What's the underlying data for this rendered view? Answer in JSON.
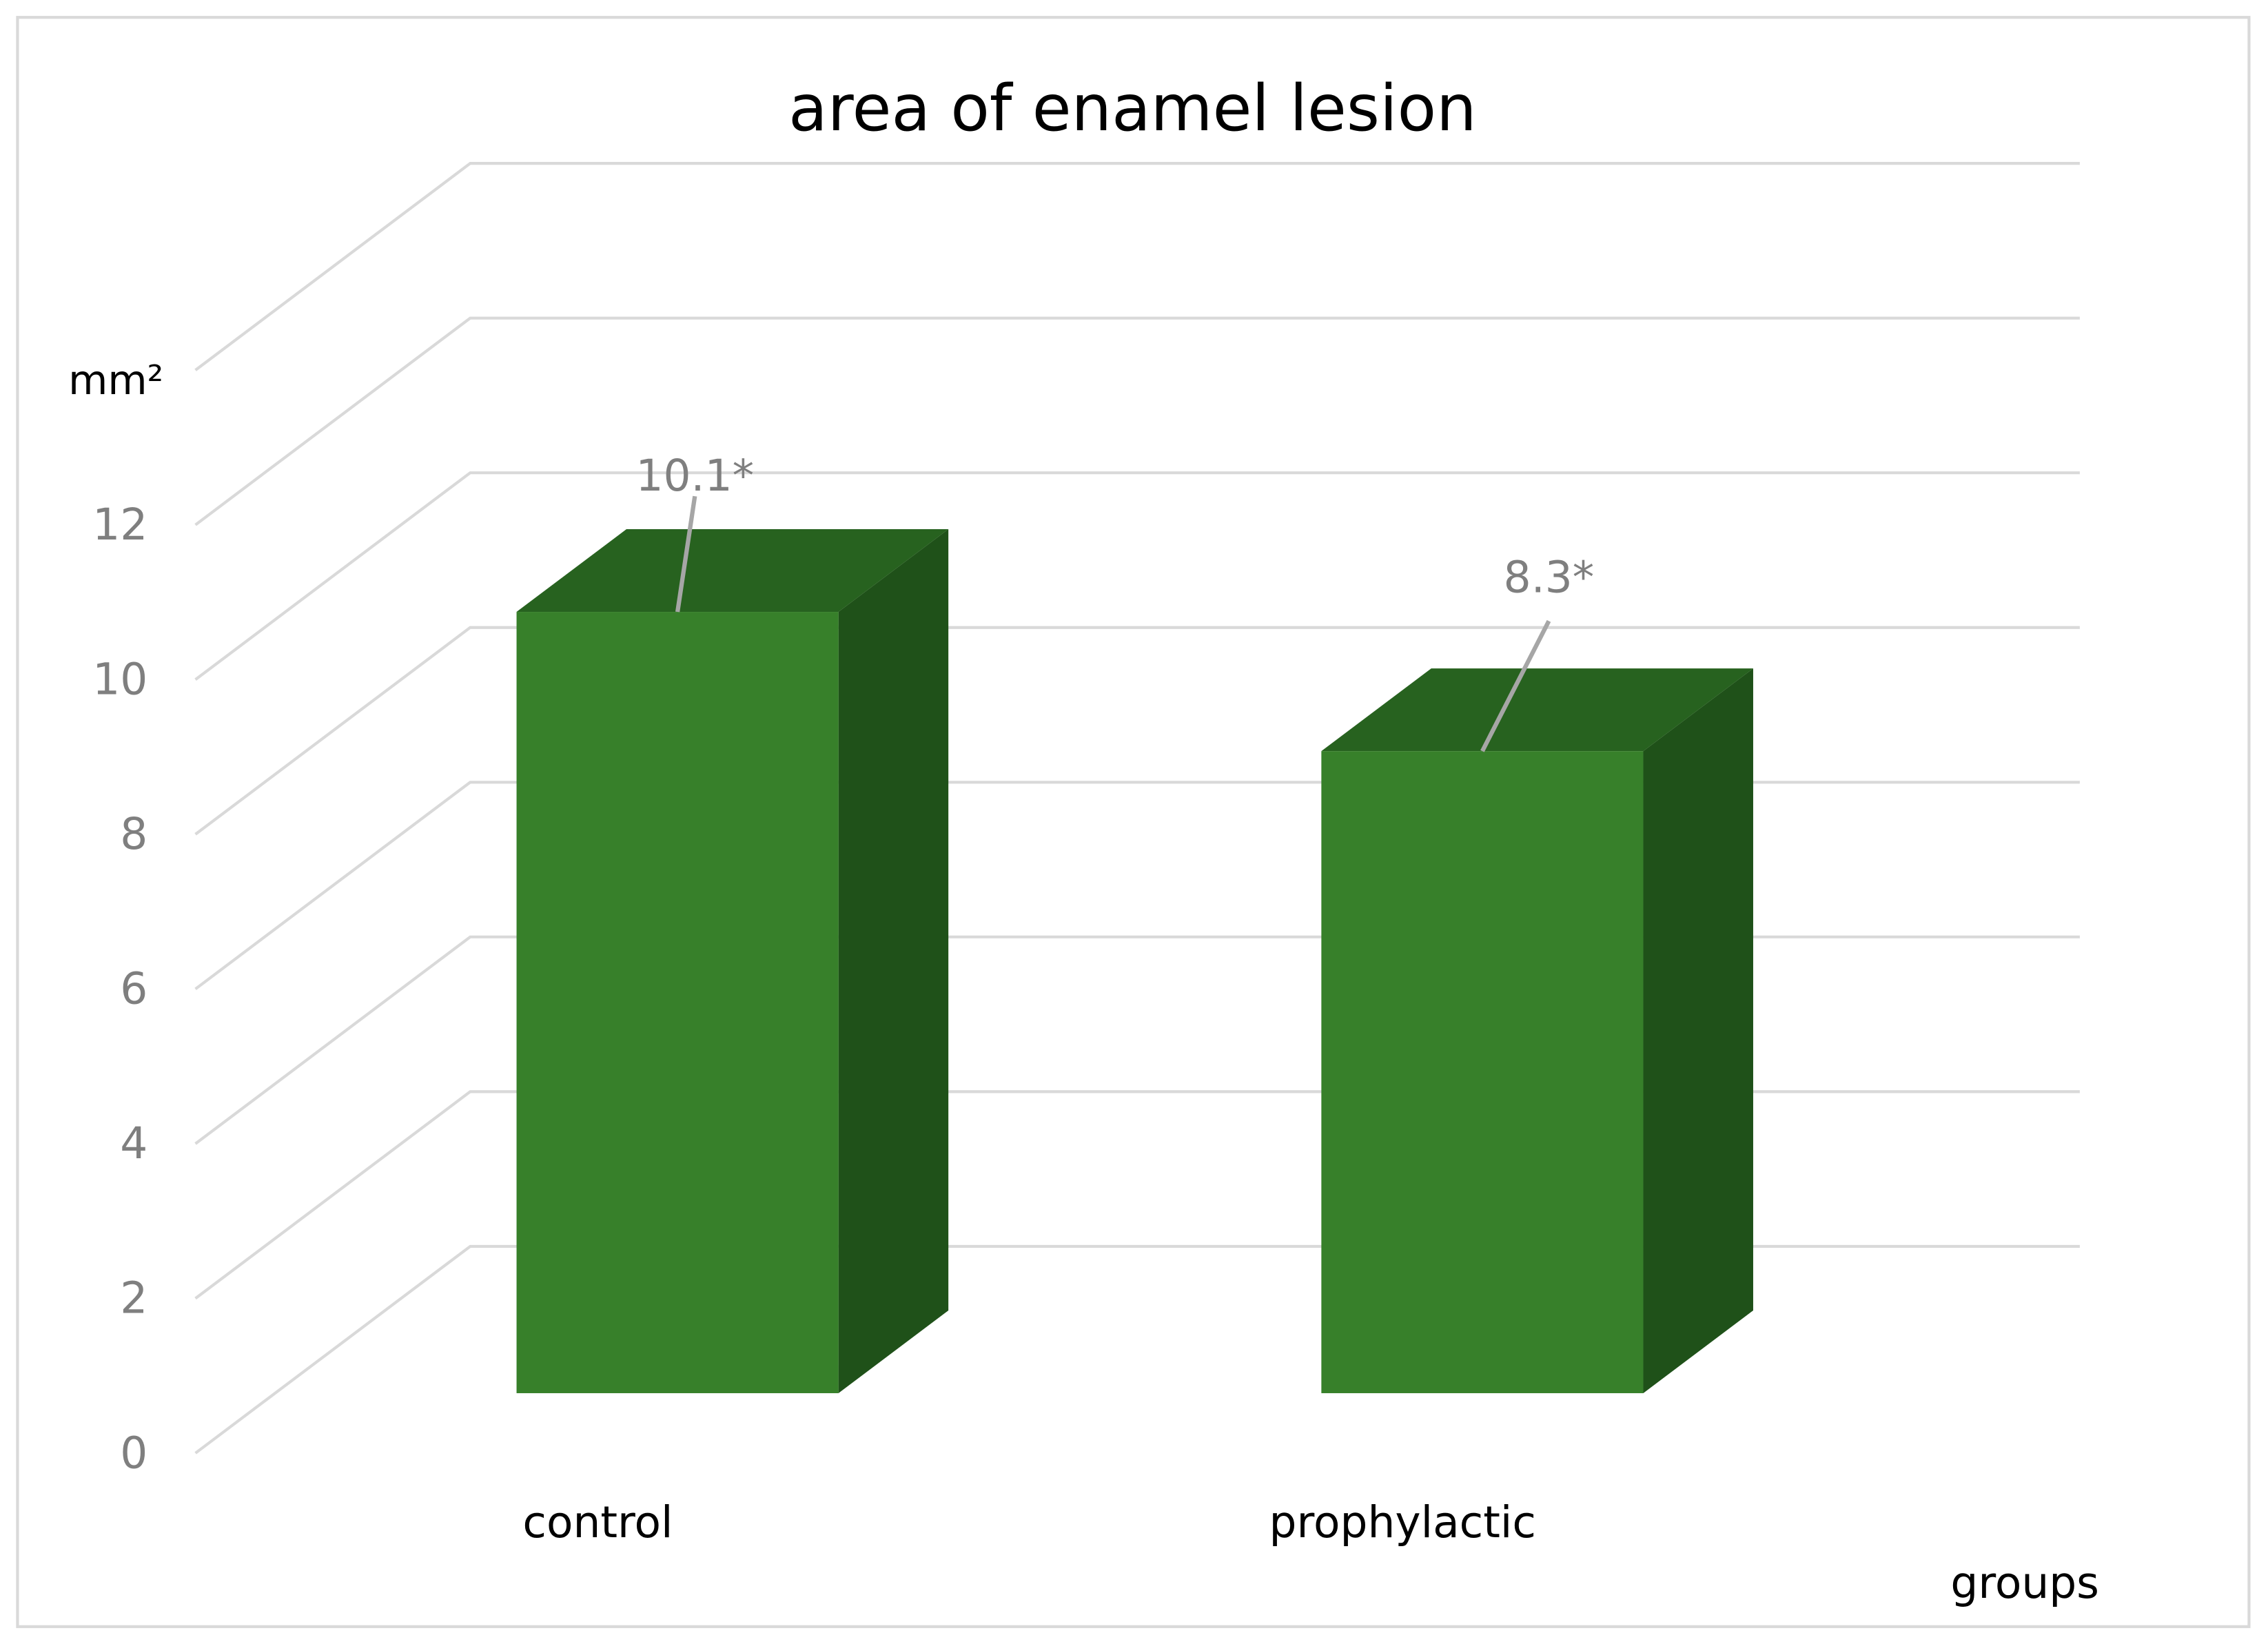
{
  "chart_data": {
    "type": "bar3d",
    "title": "area of enamel lesion",
    "y_label": "mm²",
    "x_label": "groups",
    "categories": [
      "control",
      "prophylactic"
    ],
    "values": [
      10.1,
      8.3
    ],
    "value_labels": [
      "10.1*",
      "8.3*"
    ],
    "colors": {
      "front": "#37802a",
      "top": "#27621f",
      "side": "#1f5119"
    },
    "ylim": [
      0,
      14
    ],
    "yticks": [
      0,
      2,
      4,
      6,
      8,
      10,
      12
    ],
    "grid": true
  }
}
